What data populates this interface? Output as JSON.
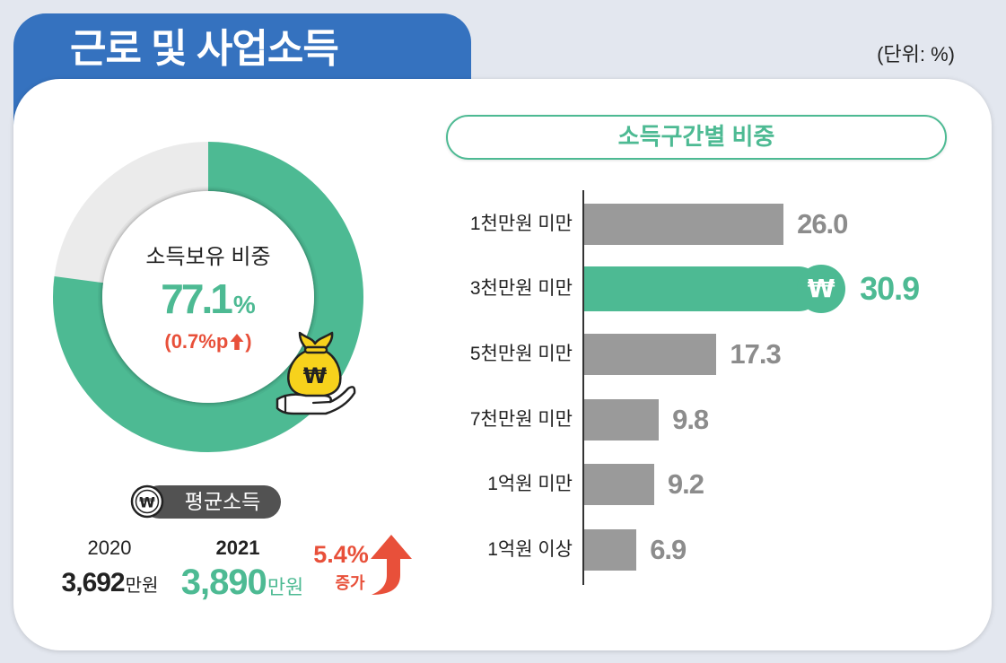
{
  "header": {
    "title": "근로 및 사업소득",
    "unit_note": "(단위: %)"
  },
  "icons": {
    "won_symbol": "₩"
  },
  "donut_panel": {
    "change_prefix": "(0.7%p",
    "change_suffix": ")",
    "change_icon": "arrow-up-icon",
    "badge_icon": "money-bag-on-hand-icon"
  },
  "average_income": {
    "badge_icon": "won-coin-icon",
    "label": "평균소득",
    "previous": {
      "year": "2020",
      "amount": "3,692",
      "unit": "만원"
    },
    "current": {
      "year": "2021",
      "amount": "3,890",
      "unit": "만원"
    },
    "change": {
      "rate": "5.4%",
      "label": "증가",
      "icon": "curved-arrow-up-icon"
    }
  },
  "colors": {
    "background": "#e3e7ef",
    "header_blue": "#3572bf",
    "accent_green": "#4dba93",
    "bar_gray": "#9a9a9a",
    "value_gray": "#8c8c8c",
    "increase_red": "#e8503a",
    "donut_track": "#ebebeb",
    "pill_dark": "#525252"
  },
  "chart_data": [
    {
      "type": "pie",
      "variant": "donut",
      "title": "소득보유 비중",
      "values": [
        77.1
      ],
      "value_labels": [
        "77.1"
      ],
      "unit": "%"
    },
    {
      "type": "bar",
      "orientation": "horizontal",
      "title": "소득구간별 비중",
      "categories": [
        "1천만원 미만",
        "3천만원 미만",
        "5천만원 미만",
        "7천만원 미만",
        "1억원 미만",
        "1억원 이상"
      ],
      "values": [
        26.0,
        30.9,
        17.3,
        9.8,
        9.2,
        6.9
      ],
      "value_labels": [
        "26.0",
        "30.9",
        "17.3",
        "9.8",
        "9.2",
        "6.9"
      ],
      "highlight_index": 1,
      "highlight_icon": "won-coin-icon",
      "grid": false
    }
  ]
}
